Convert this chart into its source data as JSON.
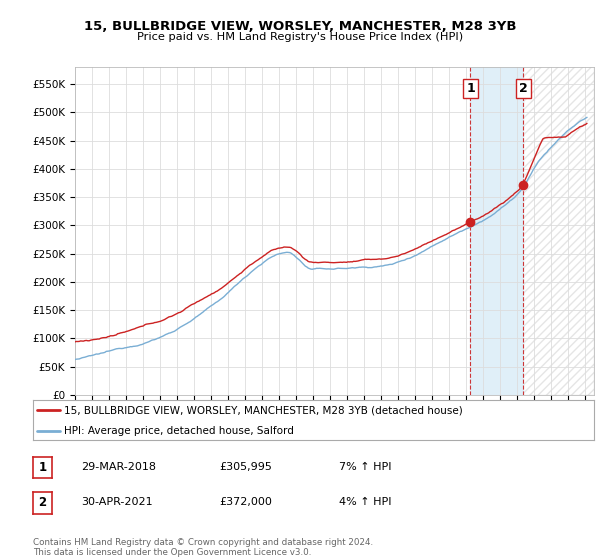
{
  "title": "15, BULLBRIDGE VIEW, WORSLEY, MANCHESTER, M28 3YB",
  "subtitle": "Price paid vs. HM Land Registry's House Price Index (HPI)",
  "ylabel_ticks": [
    "£0",
    "£50K",
    "£100K",
    "£150K",
    "£200K",
    "£250K",
    "£300K",
    "£350K",
    "£400K",
    "£450K",
    "£500K",
    "£550K"
  ],
  "ytick_values": [
    0,
    50000,
    100000,
    150000,
    200000,
    250000,
    300000,
    350000,
    400000,
    450000,
    500000,
    550000
  ],
  "ylim": [
    0,
    580000
  ],
  "xlim_start": 1995.0,
  "xlim_end": 2025.5,
  "hpi_color": "#7aaed4",
  "price_color": "#cc2222",
  "sale1_x": 2018.24,
  "sale1_y": 305995,
  "sale2_x": 2021.33,
  "sale2_y": 372000,
  "legend_line1": "15, BULLBRIDGE VIEW, WORSLEY, MANCHESTER, M28 3YB (detached house)",
  "legend_line2": "HPI: Average price, detached house, Salford",
  "table_row1": [
    "1",
    "29-MAR-2018",
    "£305,995",
    "7% ↑ HPI"
  ],
  "table_row2": [
    "2",
    "30-APR-2021",
    "£372,000",
    "4% ↑ HPI"
  ],
  "footer": "Contains HM Land Registry data © Crown copyright and database right 2024.\nThis data is licensed under the Open Government Licence v3.0.",
  "shaded_region_color": "#ddeef8",
  "vline_color": "#cc2222",
  "background_color": "#ffffff",
  "grid_color": "#dddddd",
  "hatch_color": "#cccccc"
}
